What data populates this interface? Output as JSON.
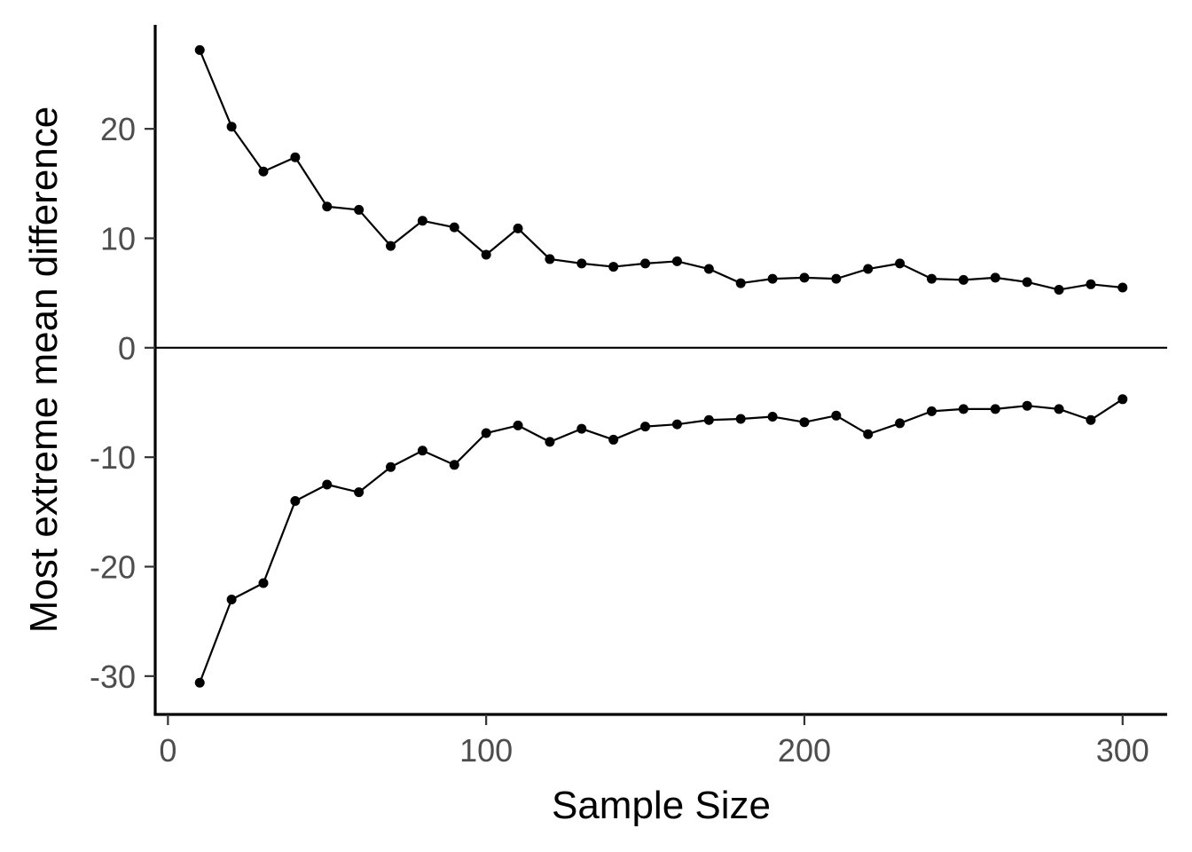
{
  "chart_data": {
    "type": "line",
    "xlabel": "Sample Size",
    "ylabel": "Most extreme mean difference",
    "xlim": [
      -4,
      314
    ],
    "ylim": [
      -33.5,
      29.5
    ],
    "x_ticks": [
      0,
      100,
      200,
      300
    ],
    "y_ticks": [
      -30,
      -20,
      -10,
      0,
      10,
      20
    ],
    "reference_line_y": 0,
    "grid": false,
    "legend": "none",
    "colors": {
      "line": "#000000",
      "tick_text": "#4d4d4d",
      "axis": "#000000"
    },
    "x": [
      10,
      20,
      30,
      40,
      50,
      60,
      70,
      80,
      90,
      100,
      110,
      120,
      130,
      140,
      150,
      160,
      170,
      180,
      190,
      200,
      210,
      220,
      230,
      240,
      250,
      260,
      270,
      280,
      290,
      300
    ],
    "series": [
      {
        "values": [
          27.2,
          20.2,
          16.1,
          17.4,
          12.9,
          12.6,
          9.3,
          11.6,
          11.0,
          8.5,
          10.9,
          8.1,
          7.7,
          7.4,
          7.7,
          7.9,
          7.2,
          5.9,
          6.3,
          6.4,
          6.3,
          7.2,
          7.7,
          6.3,
          6.2,
          6.4,
          6.0,
          5.3,
          5.8,
          5.5
        ]
      },
      {
        "values": [
          -30.6,
          -23.0,
          -21.5,
          -14.0,
          -12.5,
          -13.2,
          -10.9,
          -9.4,
          -10.7,
          -7.8,
          -7.1,
          -8.6,
          -7.4,
          -8.4,
          -7.2,
          -7.0,
          -6.6,
          -6.5,
          -6.3,
          -6.8,
          -6.2,
          -7.9,
          -6.9,
          -5.8,
          -5.6,
          -5.6,
          -5.3,
          -5.6,
          -6.6,
          -4.7
        ]
      }
    ]
  }
}
